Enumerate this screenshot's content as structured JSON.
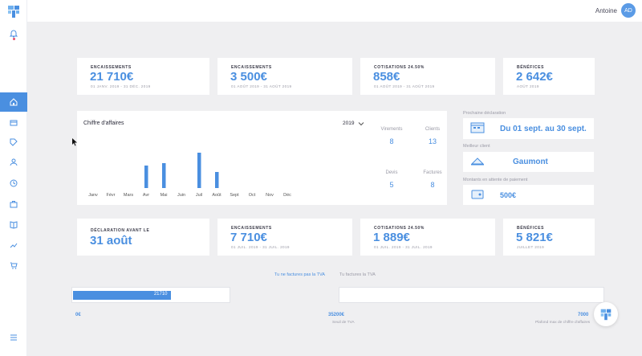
{
  "app": {
    "accent": "#4a8fe0"
  },
  "user": {
    "name": "Antoine",
    "initials": "AD"
  },
  "sidebar": {
    "items": [
      {
        "icon": "bell-icon"
      },
      {
        "icon": "home-icon",
        "active": true
      },
      {
        "icon": "invoice-icon"
      },
      {
        "icon": "tag-icon"
      },
      {
        "icon": "user-icon"
      },
      {
        "icon": "clock-icon"
      },
      {
        "icon": "briefcase-icon"
      },
      {
        "icon": "book-icon"
      },
      {
        "icon": "trend-icon"
      },
      {
        "icon": "cart-icon"
      },
      {
        "icon": "menu-icon"
      }
    ]
  },
  "top_stats": [
    {
      "label": "ENCAISSEMENTS",
      "value": "21 710€",
      "sub": "01 JANV. 2019 - 31 DÉC. 2019"
    },
    {
      "label": "ENCAISSEMENTS",
      "value": "3 500€",
      "sub": "01 AOÛT 2019 - 31 AOÛT 2019"
    },
    {
      "label": "COTISATIONS 24.50%",
      "value": "858€",
      "sub": "01 AOÛT 2019 - 31 AOÛT 2019"
    },
    {
      "label": "BÉNÉFICES",
      "value": "2 642€",
      "sub": "AOÛT 2019"
    }
  ],
  "chart_data": {
    "type": "bar",
    "title": "Chiffre d'affaires",
    "year": "2019",
    "categories": [
      "Janv",
      "Févr",
      "Mars",
      "Avr",
      "Mai",
      "Juin",
      "Juil",
      "Août",
      "Sept",
      "Oct",
      "Nov",
      "Déc"
    ],
    "values": [
      0,
      0,
      0,
      2800,
      3100,
      0,
      4400,
      2000,
      0,
      0,
      0,
      0
    ],
    "ylim": [
      0,
      5000
    ],
    "grid": false
  },
  "kpis": [
    {
      "label": "Virements",
      "value": "8"
    },
    {
      "label": "Clients",
      "value": "13"
    },
    {
      "label": "Devis",
      "value": "5"
    },
    {
      "label": "Factures",
      "value": "8"
    }
  ],
  "info": {
    "next_declaration": {
      "label": "Prochaine déclaration",
      "value": "Du 01 sept. au 30 sept.",
      "icon": "calendar-icon"
    },
    "best_client": {
      "label": "Meilleur client",
      "value": "Gaumont",
      "icon": "trophy-icon"
    },
    "pending": {
      "label": "Montants en attente de paiement",
      "value": "500€",
      "icon": "wallet-icon"
    }
  },
  "bottom_stats": [
    {
      "label": "DÉCLARATION AVANT LE",
      "value": "31 août",
      "sub": ""
    },
    {
      "label": "ENCAISSEMENTS",
      "value": "7 710€",
      "sub": "01 JUIL. 2019 - 31 JUIL. 2019"
    },
    {
      "label": "COTISATIONS 24.50%",
      "value": "1 889€",
      "sub": "01 JUIL. 2019 - 31 JUIL. 2019"
    },
    {
      "label": "BÉNÉFICES",
      "value": "5 821€",
      "sub": "JUILLET 2019"
    }
  ],
  "tva_tabs": [
    {
      "label": "Tu ne factures pas la TVA",
      "active": true
    },
    {
      "label": "Tu factures la TVA",
      "active": false
    }
  ],
  "progress": {
    "label": "21710",
    "fraction": 0.62,
    "start_label": "0€",
    "mid_label": "35200€",
    "mid_sub": "Seuil de TVA",
    "end_label": "7000",
    "end_sub": "Plafond max de chiffre d'affaires"
  }
}
